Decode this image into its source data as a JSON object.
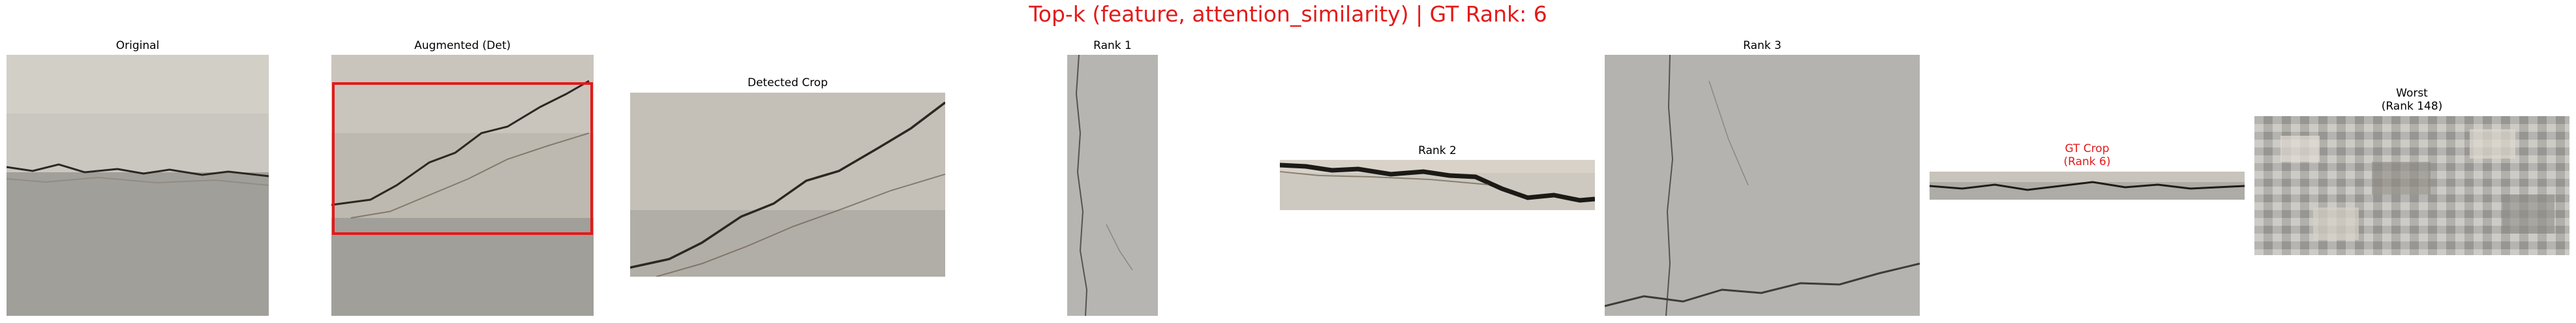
{
  "suptitle": "Top-k (feature, attention_similarity) | GT Rank: 6",
  "panels": {
    "original": "Original",
    "augmented": "Augmented (Det)",
    "detected": "Detected Crop",
    "rank1": "Rank 1",
    "rank2": "Rank 2",
    "rank3": "Rank 3",
    "gt_crop_line1": "GT Crop",
    "gt_crop_line2": "(Rank 6)",
    "worst_line1": "Worst",
    "worst_line2": "(Rank 148)"
  },
  "colors": {
    "title_red": "#e31a1a",
    "detection_box": "#e31a1a"
  }
}
